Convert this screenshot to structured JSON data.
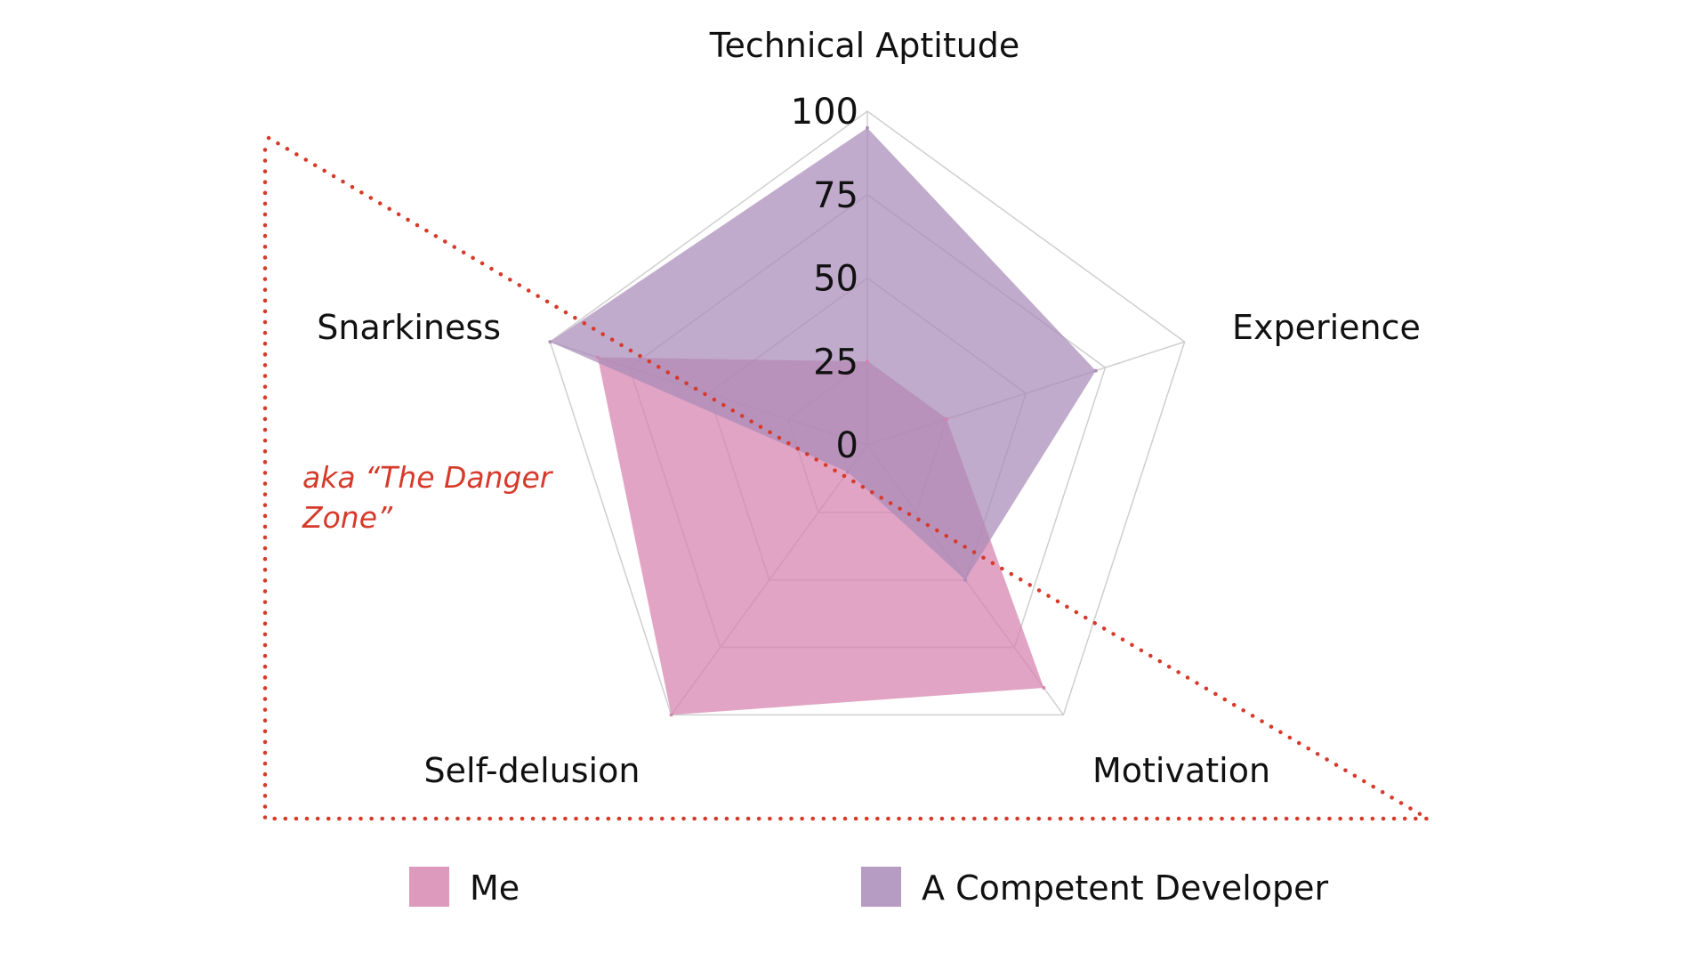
{
  "chart_data": {
    "type": "radar",
    "axes": [
      "Technical Aptitude",
      "Experience",
      "Motivation",
      "Self-delusion",
      "Snarkiness"
    ],
    "range": [
      0,
      100
    ],
    "ticks": [
      0,
      25,
      50,
      75,
      100
    ],
    "series": [
      {
        "name": "Me",
        "values": [
          25,
          25,
          90,
          100,
          85
        ],
        "color": "#d581ad"
      },
      {
        "name": "A Competent Developer",
        "values": [
          95,
          72,
          50,
          10,
          100
        ],
        "color": "#a98ab9"
      }
    ],
    "grid": true,
    "legend": "bottom",
    "annotation": {
      "text_line1": "aka “The Danger",
      "text_line2": "Zone”",
      "color": "#d63a2a"
    }
  }
}
